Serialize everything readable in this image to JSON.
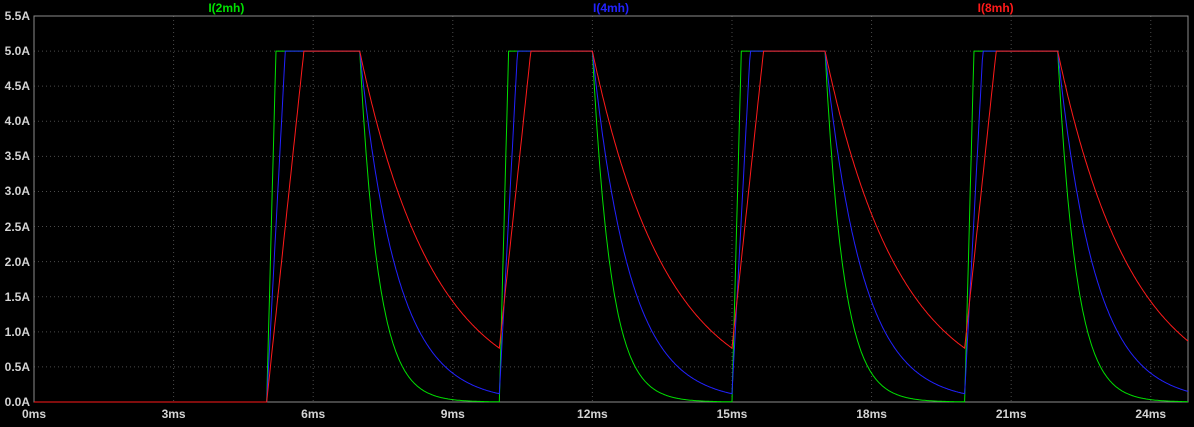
{
  "app": {
    "name": "waveform-viewer",
    "background": "#000000"
  },
  "chart_data": {
    "type": "line",
    "title": "",
    "legend_position": "top",
    "background_color": "#000000",
    "grid": true,
    "grid_color": "#4b4b4b",
    "border_color": "#8c8c8c",
    "label_color": "#d4d4d4",
    "x_axis": {
      "unit": "ms",
      "min": 0,
      "max": 24.8,
      "ticks": [
        0,
        3,
        6,
        9,
        12,
        15,
        18,
        21,
        24
      ],
      "tick_labels": [
        "0ms",
        "3ms",
        "6ms",
        "9ms",
        "12ms",
        "15ms",
        "18ms",
        "21ms",
        "24ms"
      ]
    },
    "y_axis": {
      "unit": "A",
      "min": 0,
      "max": 5.5,
      "tick_step": 0.5,
      "tick_labels": [
        "0.0A",
        "0.5A",
        "1.0A",
        "1.5A",
        "2.0A",
        "2.5A",
        "3.0A",
        "3.5A",
        "4.0A",
        "4.5A",
        "5.0A",
        "5.5A"
      ]
    },
    "series": [
      {
        "name": "I(2mh)",
        "color": "#00e000",
        "inductance_mH": 2,
        "waveform": {
          "type": "pulsed-inductor-current",
          "initial_A": 0.0,
          "amplitude_A": 5.0,
          "first_pulse_ms": 5.0,
          "period_ms": 5.0,
          "on_time_ms": 2.0,
          "rise_ramp_ms": 0.2,
          "decay_tau_ms": 0.4
        }
      },
      {
        "name": "I(4mh)",
        "color": "#2222ff",
        "inductance_mH": 4,
        "waveform": {
          "type": "pulsed-inductor-current",
          "initial_A": 0.0,
          "amplitude_A": 5.0,
          "first_pulse_ms": 5.0,
          "period_ms": 5.0,
          "on_time_ms": 2.0,
          "rise_ramp_ms": 0.4,
          "decay_tau_ms": 0.8
        }
      },
      {
        "name": "I(8mh)",
        "color": "#ff1a1a",
        "inductance_mH": 8,
        "waveform": {
          "type": "pulsed-inductor-current",
          "initial_A": 0.0,
          "amplitude_A": 5.0,
          "first_pulse_ms": 5.0,
          "period_ms": 5.0,
          "on_time_ms": 2.0,
          "rise_ramp_ms": 0.8,
          "decay_tau_ms": 1.6
        }
      }
    ],
    "key_points": {
      "baseline_A": 0.0,
      "plateau_level_A": 5.0,
      "pulse_plateau_intervals_ms": [
        [
          5.2,
          7.0
        ],
        [
          10.2,
          12.0
        ],
        [
          15.2,
          17.0
        ],
        [
          20.2,
          22.0
        ]
      ],
      "flat_zero_interval_ms": [
        0.0,
        5.0
      ]
    }
  }
}
